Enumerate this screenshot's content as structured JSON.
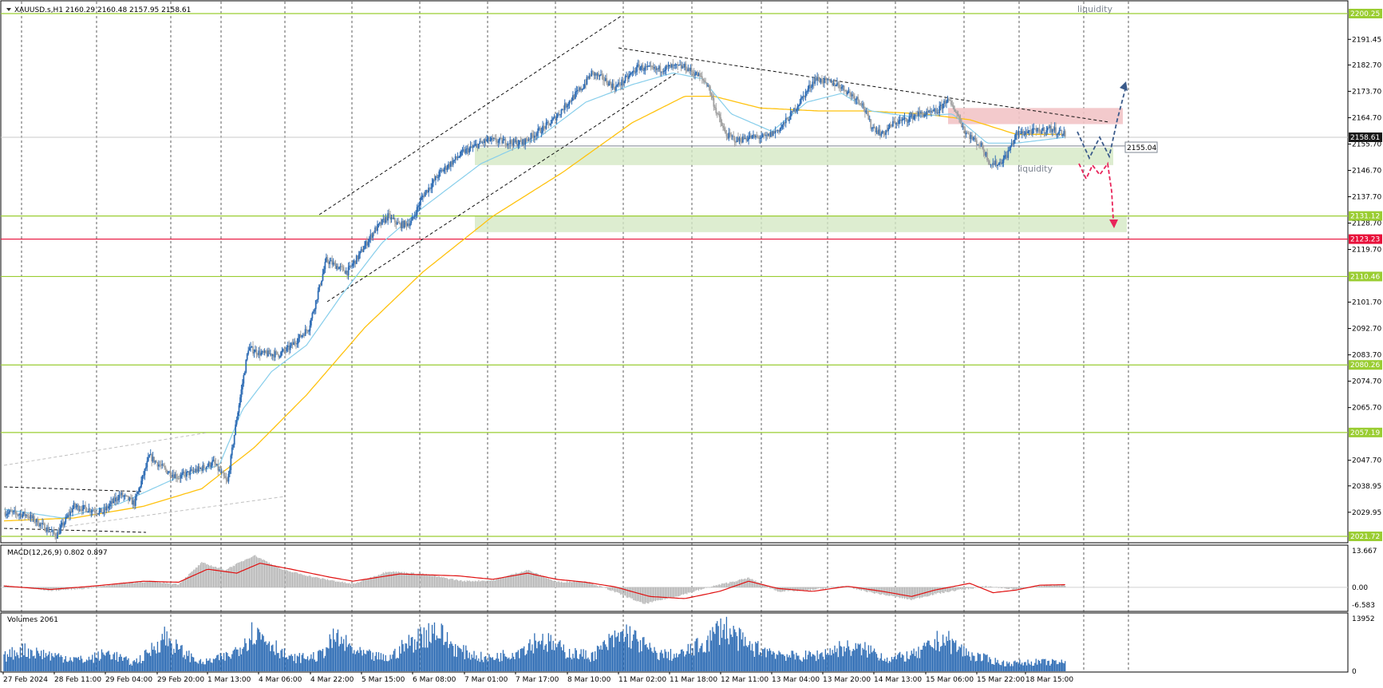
{
  "symbol_header": "XAUUSD.s,H1  2160.29 2160.48 2157.95 2158.61",
  "colors": {
    "bull": "#2f6db5",
    "bear": "#a0a0a0",
    "ma_fast": "#87ceeb",
    "ma_slow": "#ffc20e",
    "level_line": "#9acd32",
    "red_line": "#e8103a",
    "zone_green": "#d4e8c4",
    "zone_red": "#f2c4c6",
    "macd_signal": "#e01010",
    "macd_hist": "#b8b8b8",
    "volume": "#2f6db5",
    "grid": "#404040",
    "arrow_up": "#3a5a8a",
    "arrow_down": "#e8245a"
  },
  "price_axis": {
    "ticks": [
      "2191.45",
      "2182.70",
      "2173.70",
      "2164.70",
      "2155.70",
      "2146.70",
      "2137.70",
      "2128.70",
      "2119.70",
      "2101.70",
      "2092.70",
      "2083.70",
      "2074.70",
      "2065.70",
      "2047.70",
      "2038.95",
      "2029.95"
    ],
    "current_price_tag": "2158.61",
    "red_level_tag": "2123.23",
    "green_level_tags": [
      "2200.25",
      "2131.12",
      "2110.46",
      "2080.26",
      "2057.19",
      "2021.72"
    ],
    "hline_label": "2155.04"
  },
  "time_axis": {
    "labels": [
      "27 Feb 2024",
      "28 Feb 11:00",
      "29 Feb 04:00",
      "29 Feb 20:00",
      "1 Mar 13:00",
      "4 Mar 06:00",
      "4 Mar 22:00",
      "5 Mar 15:00",
      "6 Mar 08:00",
      "7 Mar 01:00",
      "7 Mar 17:00",
      "8 Mar 10:00",
      "11 Mar 02:00",
      "11 Mar 18:00",
      "12 Mar 11:00",
      "13 Mar 04:00",
      "13 Mar 20:00",
      "14 Mar 13:00",
      "15 Mar 06:00",
      "15 Mar 22:00",
      "18 Mar 15:00"
    ]
  },
  "annotations": {
    "liquidity_top": "liquidity",
    "liquidity_mid": "liquidity"
  },
  "macd": {
    "label": "MACD(12,26,9) 0.802 0.897",
    "ticks": [
      "13.667",
      "0.00",
      "-6.583"
    ]
  },
  "volumes": {
    "label": "Volumes 2061",
    "ticks": [
      "13952",
      "0"
    ]
  },
  "chart_data": {
    "type": "candlestick",
    "title": "XAUUSD.s,H1",
    "y_range": [
      2017,
      2206
    ],
    "levels": {
      "green": [
        2200.25,
        2131.12,
        2110.46,
        2080.26,
        2057.19,
        2021.72
      ],
      "red": 2123.23,
      "horizontal": 2155.04
    },
    "zones": [
      {
        "kind": "demand",
        "from": 2148.5,
        "to": 2154.5
      },
      {
        "kind": "demand",
        "from": 2125.6,
        "to": 2131.1
      },
      {
        "kind": "supply",
        "from": 2162.5,
        "to": 2168.0
      }
    ],
    "path_points": [
      [
        0,
        2030
      ],
      [
        20,
        2029
      ],
      [
        45,
        2022
      ],
      [
        60,
        2032
      ],
      [
        85,
        2030
      ],
      [
        100,
        2036
      ],
      [
        112,
        2033
      ],
      [
        125,
        2049
      ],
      [
        140,
        2044
      ],
      [
        150,
        2042
      ],
      [
        170,
        2045
      ],
      [
        180,
        2047
      ],
      [
        192,
        2040
      ],
      [
        200,
        2062
      ],
      [
        210,
        2086
      ],
      [
        222,
        2084
      ],
      [
        237,
        2084
      ],
      [
        245,
        2086
      ],
      [
        262,
        2093
      ],
      [
        268,
        2102
      ],
      [
        277,
        2116
      ],
      [
        286,
        2114
      ],
      [
        295,
        2112
      ],
      [
        304,
        2117
      ],
      [
        318,
        2126
      ],
      [
        330,
        2131
      ],
      [
        340,
        2128
      ],
      [
        350,
        2129
      ],
      [
        360,
        2138
      ],
      [
        375,
        2146
      ],
      [
        395,
        2153
      ],
      [
        415,
        2157
      ],
      [
        445,
        2156
      ],
      [
        470,
        2163
      ],
      [
        485,
        2170
      ],
      [
        497,
        2175
      ],
      [
        505,
        2180
      ],
      [
        515,
        2178
      ],
      [
        525,
        2175
      ],
      [
        535,
        2178
      ],
      [
        545,
        2182
      ],
      [
        560,
        2181
      ],
      [
        573,
        2182
      ],
      [
        585,
        2182
      ],
      [
        597,
        2179
      ],
      [
        605,
        2176
      ],
      [
        612,
        2167
      ],
      [
        620,
        2159
      ],
      [
        630,
        2157
      ],
      [
        640,
        2158
      ],
      [
        655,
        2158
      ],
      [
        667,
        2161
      ],
      [
        677,
        2166
      ],
      [
        687,
        2172
      ],
      [
        697,
        2178
      ],
      [
        707,
        2177
      ],
      [
        717,
        2176
      ],
      [
        727,
        2173
      ],
      [
        737,
        2170
      ],
      [
        745,
        2162
      ],
      [
        755,
        2159
      ],
      [
        765,
        2163
      ],
      [
        775,
        2164
      ],
      [
        785,
        2166
      ],
      [
        795,
        2166
      ],
      [
        803,
        2167
      ],
      [
        810,
        2171
      ],
      [
        818,
        2167
      ],
      [
        826,
        2160
      ],
      [
        834,
        2157
      ],
      [
        840,
        2155
      ],
      [
        848,
        2149
      ],
      [
        855,
        2149
      ],
      [
        862,
        2152
      ],
      [
        870,
        2159
      ],
      [
        880,
        2160
      ],
      [
        890,
        2160
      ],
      [
        898,
        2161
      ],
      [
        906,
        2160
      ],
      [
        912,
        2159
      ]
    ],
    "ma_fast_points": [
      [
        0,
        2031
      ],
      [
        50,
        2028
      ],
      [
        100,
        2033
      ],
      [
        150,
        2042
      ],
      [
        185,
        2046
      ],
      [
        205,
        2065
      ],
      [
        230,
        2078
      ],
      [
        260,
        2087
      ],
      [
        290,
        2104
      ],
      [
        325,
        2122
      ],
      [
        360,
        2134
      ],
      [
        410,
        2149
      ],
      [
        460,
        2158
      ],
      [
        500,
        2170
      ],
      [
        540,
        2176
      ],
      [
        575,
        2180
      ],
      [
        600,
        2178
      ],
      [
        625,
        2166
      ],
      [
        660,
        2160
      ],
      [
        690,
        2170
      ],
      [
        720,
        2173
      ],
      [
        745,
        2167
      ],
      [
        780,
        2165
      ],
      [
        815,
        2166
      ],
      [
        845,
        2156
      ],
      [
        870,
        2156
      ],
      [
        912,
        2158
      ]
    ],
    "ma_slow_points": [
      [
        0,
        2027
      ],
      [
        60,
        2028
      ],
      [
        120,
        2032
      ],
      [
        170,
        2038
      ],
      [
        215,
        2052
      ],
      [
        260,
        2070
      ],
      [
        310,
        2093
      ],
      [
        360,
        2112
      ],
      [
        420,
        2131
      ],
      [
        480,
        2146
      ],
      [
        540,
        2163
      ],
      [
        585,
        2172
      ],
      [
        610,
        2172
      ],
      [
        650,
        2168
      ],
      [
        700,
        2167
      ],
      [
        740,
        2167
      ],
      [
        790,
        2166
      ],
      [
        830,
        2164
      ],
      [
        870,
        2159
      ],
      [
        912,
        2159
      ]
    ],
    "macd_signal_points": [
      [
        0,
        0.5
      ],
      [
        40,
        -0.8
      ],
      [
        80,
        0.6
      ],
      [
        120,
        2.3
      ],
      [
        150,
        1.9
      ],
      [
        175,
        6.8
      ],
      [
        200,
        5.3
      ],
      [
        220,
        9.0
      ],
      [
        250,
        6.5
      ],
      [
        280,
        3.8
      ],
      [
        300,
        2.3
      ],
      [
        340,
        5.0
      ],
      [
        390,
        4.3
      ],
      [
        420,
        3.0
      ],
      [
        450,
        5.3
      ],
      [
        475,
        3.0
      ],
      [
        500,
        1.9
      ],
      [
        525,
        0.2
      ],
      [
        555,
        -3.4
      ],
      [
        585,
        -4.2
      ],
      [
        615,
        -1.5
      ],
      [
        640,
        2.3
      ],
      [
        665,
        -0.4
      ],
      [
        695,
        -1.5
      ],
      [
        725,
        0.4
      ],
      [
        755,
        -1.5
      ],
      [
        780,
        -3.4
      ],
      [
        800,
        -1.0
      ],
      [
        830,
        1.5
      ],
      [
        850,
        -2.0
      ],
      [
        870,
        -1.0
      ],
      [
        890,
        0.8
      ],
      [
        912,
        1.0
      ]
    ],
    "macd_hist_points": [
      [
        0,
        0.6
      ],
      [
        40,
        -1.2
      ],
      [
        70,
        -0.4
      ],
      [
        100,
        1.5
      ],
      [
        125,
        2.3
      ],
      [
        150,
        1.2
      ],
      [
        170,
        9.2
      ],
      [
        190,
        6.5
      ],
      [
        215,
        12.0
      ],
      [
        240,
        6.5
      ],
      [
        270,
        3.5
      ],
      [
        300,
        1.2
      ],
      [
        330,
        6.0
      ],
      [
        360,
        5.0
      ],
      [
        395,
        2.3
      ],
      [
        420,
        2.6
      ],
      [
        450,
        6.5
      ],
      [
        475,
        2.0
      ],
      [
        500,
        2.3
      ],
      [
        520,
        -0.8
      ],
      [
        550,
        -6.2
      ],
      [
        580,
        -3.1
      ],
      [
        610,
        0.5
      ],
      [
        640,
        3.5
      ],
      [
        665,
        -1.5
      ],
      [
        690,
        -1.2
      ],
      [
        720,
        0.5
      ],
      [
        750,
        -2.3
      ],
      [
        780,
        -4.6
      ],
      [
        800,
        -2.5
      ],
      [
        820,
        -1.0
      ],
      [
        845,
        0.4
      ],
      [
        870,
        -0.8
      ],
      [
        890,
        0.6
      ],
      [
        912,
        0.8
      ]
    ],
    "volume_points": [
      [
        0,
        4200
      ],
      [
        15,
        6300
      ],
      [
        40,
        4700
      ],
      [
        70,
        3200
      ],
      [
        90,
        5400
      ],
      [
        110,
        2400
      ],
      [
        120,
        4100
      ],
      [
        138,
        10200
      ],
      [
        150,
        6300
      ],
      [
        170,
        2400
      ],
      [
        195,
        4700
      ],
      [
        215,
        11700
      ],
      [
        230,
        8300
      ],
      [
        245,
        3700
      ],
      [
        270,
        4300
      ],
      [
        285,
        9800
      ],
      [
        305,
        5200
      ],
      [
        330,
        3600
      ],
      [
        345,
        7500
      ],
      [
        370,
        12400
      ],
      [
        390,
        6200
      ],
      [
        415,
        3600
      ],
      [
        440,
        5600
      ],
      [
        460,
        9600
      ],
      [
        485,
        5500
      ],
      [
        505,
        4400
      ],
      [
        520,
        8200
      ],
      [
        535,
        11100
      ],
      [
        560,
        5100
      ],
      [
        580,
        4600
      ],
      [
        605,
        8600
      ],
      [
        617,
        13300
      ],
      [
        640,
        7100
      ],
      [
        660,
        5800
      ],
      [
        680,
        4200
      ],
      [
        700,
        4700
      ],
      [
        720,
        6900
      ],
      [
        745,
        6100
      ],
      [
        760,
        3500
      ],
      [
        785,
        5000
      ],
      [
        807,
        9700
      ],
      [
        830,
        4800
      ],
      [
        860,
        2300
      ],
      [
        890,
        2700
      ],
      [
        912,
        2500
      ]
    ]
  }
}
